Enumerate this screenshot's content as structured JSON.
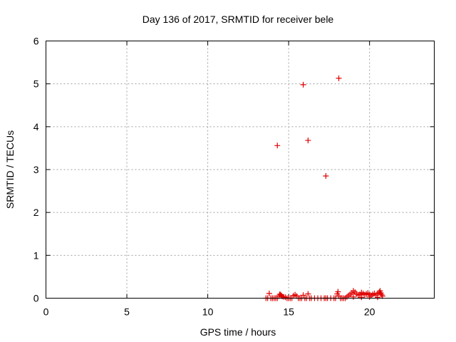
{
  "chart_data": {
    "type": "scatter",
    "title": "Day 136 of 2017, SRMTID for receiver bele",
    "xlabel": "GPS time / hours",
    "ylabel": "SRMTID / TECUs",
    "xlim": [
      0,
      24
    ],
    "ylim": [
      0,
      6
    ],
    "x_ticks": [
      0,
      5,
      10,
      15,
      20
    ],
    "y_ticks": [
      0,
      1,
      2,
      3,
      4,
      5,
      6
    ],
    "grid": true,
    "marker": "+",
    "marker_color": "#e00000",
    "series": [
      {
        "points": [
          [
            14.3,
            3.56
          ],
          [
            15.9,
            4.98
          ],
          [
            16.2,
            3.68
          ],
          [
            17.3,
            2.85
          ],
          [
            18.1,
            5.13
          ],
          [
            13.6,
            0.0
          ],
          [
            13.7,
            0.0
          ],
          [
            13.8,
            0.11
          ],
          [
            13.9,
            0.0
          ],
          [
            14.0,
            0.0
          ],
          [
            14.1,
            0.0
          ],
          [
            14.2,
            0.0
          ],
          [
            14.3,
            0.0
          ],
          [
            14.4,
            0.05
          ],
          [
            14.45,
            0.09
          ],
          [
            14.5,
            0.08
          ],
          [
            14.55,
            0.06
          ],
          [
            14.6,
            0.04
          ],
          [
            14.7,
            0.03
          ],
          [
            14.8,
            0.02
          ],
          [
            14.9,
            0.0
          ],
          [
            15.0,
            0.0
          ],
          [
            15.1,
            0.0
          ],
          [
            15.2,
            0.0
          ],
          [
            15.3,
            0.06
          ],
          [
            15.4,
            0.08
          ],
          [
            15.5,
            0.05
          ],
          [
            15.6,
            0.0
          ],
          [
            15.7,
            0.0
          ],
          [
            15.8,
            0.0
          ],
          [
            15.9,
            0.07
          ],
          [
            16.0,
            0.0
          ],
          [
            16.1,
            0.0
          ],
          [
            16.2,
            0.1
          ],
          [
            16.3,
            0.0
          ],
          [
            16.4,
            0.0
          ],
          [
            16.6,
            0.0
          ],
          [
            16.8,
            0.0
          ],
          [
            17.0,
            0.0
          ],
          [
            17.2,
            0.0
          ],
          [
            17.3,
            0.0
          ],
          [
            17.4,
            0.0
          ],
          [
            17.6,
            0.0
          ],
          [
            17.8,
            0.0
          ],
          [
            17.9,
            0.0
          ],
          [
            18.0,
            0.1
          ],
          [
            18.05,
            0.15
          ],
          [
            18.1,
            0.05
          ],
          [
            18.2,
            0.0
          ],
          [
            18.3,
            0.0
          ],
          [
            18.4,
            0.0
          ],
          [
            18.5,
            0.0
          ],
          [
            18.6,
            0.03
          ],
          [
            18.7,
            0.06
          ],
          [
            18.8,
            0.09
          ],
          [
            18.9,
            0.12
          ],
          [
            19.0,
            0.17
          ],
          [
            19.1,
            0.14
          ],
          [
            19.2,
            0.1
          ],
          [
            19.3,
            0.07
          ],
          [
            19.4,
            0.09
          ],
          [
            19.5,
            0.13
          ],
          [
            19.6,
            0.11
          ],
          [
            19.7,
            0.08
          ],
          [
            19.8,
            0.1
          ],
          [
            19.9,
            0.12
          ],
          [
            20.0,
            0.08
          ],
          [
            20.1,
            0.06
          ],
          [
            20.2,
            0.09
          ],
          [
            20.3,
            0.11
          ],
          [
            20.4,
            0.07
          ],
          [
            20.5,
            0.1
          ],
          [
            20.6,
            0.14
          ],
          [
            20.65,
            0.17
          ],
          [
            20.7,
            0.12
          ],
          [
            20.75,
            0.08
          ],
          [
            20.8,
            0.05
          ],
          [
            19.0,
            0.03
          ],
          [
            19.5,
            0.02
          ],
          [
            20.0,
            0.03
          ],
          [
            20.5,
            0.02
          ]
        ]
      }
    ]
  }
}
